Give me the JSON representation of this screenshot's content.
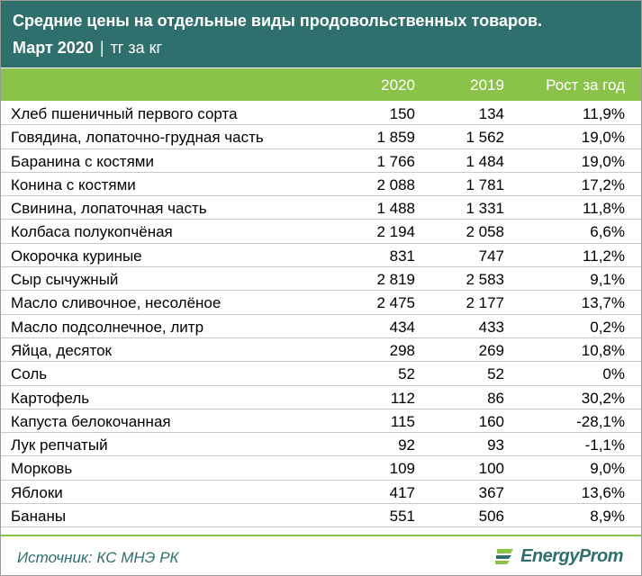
{
  "header": {
    "title": "Средние цены на отдельные виды продовольственных товаров.",
    "period": "Март 2020",
    "separator": "|",
    "unit": "тг за кг"
  },
  "columns": [
    "2020",
    "2019",
    "Рост за год"
  ],
  "rows": [
    {
      "name": "Хлеб пшеничный первого сорта",
      "y2020": "150",
      "y2019": "134",
      "growth": "11,9%"
    },
    {
      "name": "Говядина, лопаточно-грудная часть",
      "y2020": "1 859",
      "y2019": "1 562",
      "growth": "19,0%"
    },
    {
      "name": "Баранина с костями",
      "y2020": "1 766",
      "y2019": "1 484",
      "growth": "19,0%"
    },
    {
      "name": "Конина с костями",
      "y2020": "2 088",
      "y2019": "1 781",
      "growth": "17,2%"
    },
    {
      "name": "Свинина, лопаточная часть",
      "y2020": "1 488",
      "y2019": "1 331",
      "growth": "11,8%"
    },
    {
      "name": "Колбаса полукопчёная",
      "y2020": "2 194",
      "y2019": "2 058",
      "growth": "6,6%"
    },
    {
      "name": "Окорочка куриные",
      "y2020": "831",
      "y2019": "747",
      "growth": "11,2%"
    },
    {
      "name": "Сыр сычужный",
      "y2020": "2 819",
      "y2019": "2 583",
      "growth": "9,1%"
    },
    {
      "name": "Масло сливочное, несолёное",
      "y2020": "2 475",
      "y2019": "2 177",
      "growth": "13,7%"
    },
    {
      "name": "Масло подсолнечное, литр",
      "y2020": "434",
      "y2019": "433",
      "growth": "0,2%"
    },
    {
      "name": "Яйца,  десяток",
      "y2020": "298",
      "y2019": "269",
      "growth": "10,8%"
    },
    {
      "name": "Соль",
      "y2020": "52",
      "y2019": "52",
      "growth": "0%"
    },
    {
      "name": "Картофель",
      "y2020": "112",
      "y2019": "86",
      "growth": "30,2%"
    },
    {
      "name": "Капуста белокочанная",
      "y2020": "115",
      "y2019": "160",
      "growth": "-28,1%"
    },
    {
      "name": "Лук репчатый",
      "y2020": "92",
      "y2019": "93",
      "growth": "-1,1%"
    },
    {
      "name": "Морковь",
      "y2020": "109",
      "y2019": "100",
      "growth": "9,0%"
    },
    {
      "name": "Яблоки",
      "y2020": "417",
      "y2019": "367",
      "growth": "13,6%"
    },
    {
      "name": "Бананы",
      "y2020": "551",
      "y2019": "506",
      "growth": "8,9%"
    }
  ],
  "footer": {
    "source": "Источник: КС МНЭ РК",
    "logo_text": "EnergyProm",
    "logo_icon": "energyprom-logo-icon"
  },
  "colors": {
    "header_bg": "#2f6f6c",
    "accent_green": "#8bc34a",
    "source_text": "#2f6f6c"
  }
}
